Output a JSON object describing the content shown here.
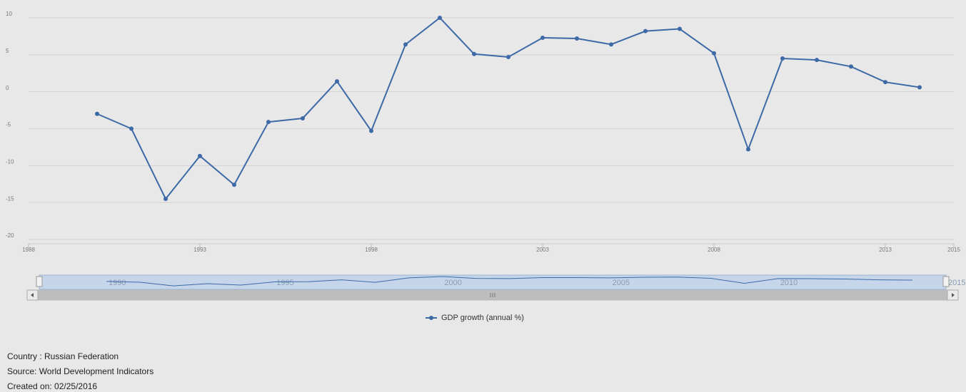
{
  "chart_data": {
    "type": "line",
    "x": [
      1990,
      1991,
      1992,
      1993,
      1994,
      1995,
      1996,
      1997,
      1998,
      1999,
      2000,
      2001,
      2002,
      2003,
      2004,
      2005,
      2006,
      2007,
      2008,
      2009,
      2010,
      2011,
      2012,
      2013,
      2014
    ],
    "series": [
      {
        "name": "GDP growth (annual %)",
        "color": "#3d6aa6",
        "values": [
          -3.0,
          -5.0,
          -14.5,
          -8.7,
          -12.6,
          -4.1,
          -3.6,
          1.4,
          -5.3,
          6.4,
          10.0,
          5.1,
          4.7,
          7.3,
          7.2,
          6.4,
          8.2,
          8.5,
          5.2,
          -7.8,
          4.5,
          4.3,
          3.4,
          1.3,
          0.6
        ]
      }
    ],
    "xlim": [
      1988,
      2015
    ],
    "xticks": [
      1988,
      1993,
      1998,
      2003,
      2008,
      2013,
      2015
    ],
    "ylim": [
      -20,
      10
    ],
    "yticks": [
      -20,
      -15,
      -10,
      -5,
      0,
      5,
      10
    ],
    "grid": true,
    "navigator": {
      "xticks": [
        1990,
        1995,
        2000,
        2005,
        2010,
        2015
      ]
    },
    "footer": [
      "Country : Russian Federation",
      "Source: World Development Indicators",
      "Created on: 02/25/2016"
    ]
  }
}
